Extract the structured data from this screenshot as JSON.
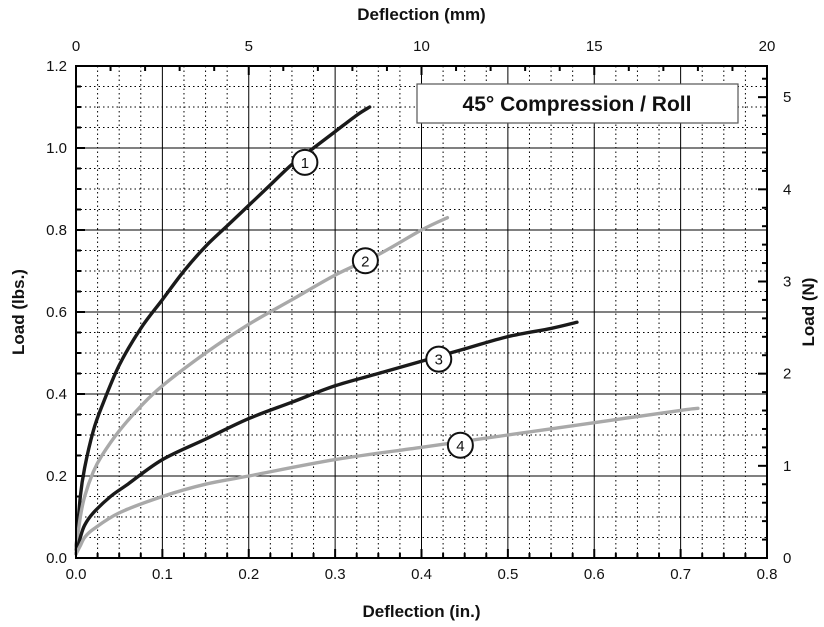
{
  "chart_data": {
    "type": "line",
    "title": "45° Compression / Roll",
    "xlabel": "Deflection (in.)",
    "ylabel": "Load (lbs.)",
    "x2label": "Deflection (mm)",
    "y2label": "Load (N)",
    "xlim": [
      0,
      0.8
    ],
    "ylim": [
      0,
      1.2
    ],
    "x2lim": [
      0,
      20
    ],
    "y2lim": [
      0,
      5.338
    ],
    "x_ticks": [
      "0.0",
      "0.1",
      "0.2",
      "0.3",
      "0.4",
      "0.5",
      "0.6",
      "0.7",
      "0.8"
    ],
    "y_ticks": [
      "0.0",
      "0.2",
      "0.4",
      "0.6",
      "0.8",
      "1.0",
      "1.2"
    ],
    "x2_ticks": [
      "0",
      "5",
      "10",
      "15",
      "20"
    ],
    "y2_ticks": [
      "0",
      "1",
      "2",
      "3",
      "4",
      "5"
    ],
    "grid": true,
    "legend_position": "top-right",
    "colors": {
      "dark": "#1a1a1a",
      "light": "#a9a9a9",
      "grid": "#000000"
    },
    "series": [
      {
        "name": "1",
        "color": "dark",
        "x": [
          0,
          0.005,
          0.01,
          0.02,
          0.03,
          0.05,
          0.075,
          0.1,
          0.125,
          0.15,
          0.175,
          0.2,
          0.225,
          0.25,
          0.275,
          0.3,
          0.325,
          0.34
        ],
        "y": [
          0.02,
          0.15,
          0.22,
          0.31,
          0.37,
          0.47,
          0.56,
          0.63,
          0.7,
          0.76,
          0.81,
          0.86,
          0.91,
          0.96,
          1.0,
          1.04,
          1.08,
          1.1
        ],
        "label_at": [
          0.265,
          0.965
        ]
      },
      {
        "name": "2",
        "color": "light",
        "x": [
          0,
          0.005,
          0.01,
          0.02,
          0.03,
          0.05,
          0.075,
          0.1,
          0.15,
          0.2,
          0.25,
          0.3,
          0.35,
          0.4,
          0.43
        ],
        "y": [
          0.02,
          0.1,
          0.15,
          0.21,
          0.25,
          0.31,
          0.37,
          0.42,
          0.5,
          0.57,
          0.63,
          0.69,
          0.74,
          0.8,
          0.83
        ],
        "label_at": [
          0.335,
          0.725
        ]
      },
      {
        "name": "3",
        "color": "dark",
        "x": [
          0,
          0.005,
          0.01,
          0.02,
          0.04,
          0.06,
          0.1,
          0.15,
          0.2,
          0.25,
          0.3,
          0.35,
          0.4,
          0.45,
          0.5,
          0.55,
          0.58
        ],
        "y": [
          0.01,
          0.05,
          0.08,
          0.11,
          0.15,
          0.18,
          0.24,
          0.29,
          0.34,
          0.38,
          0.42,
          0.45,
          0.48,
          0.51,
          0.54,
          0.56,
          0.575
        ],
        "label_at": [
          0.42,
          0.485
        ]
      },
      {
        "name": "4",
        "color": "light",
        "x": [
          0,
          0.005,
          0.01,
          0.02,
          0.05,
          0.1,
          0.15,
          0.2,
          0.3,
          0.4,
          0.5,
          0.6,
          0.7,
          0.72
        ],
        "y": [
          0.01,
          0.03,
          0.05,
          0.07,
          0.11,
          0.15,
          0.18,
          0.2,
          0.24,
          0.27,
          0.3,
          0.33,
          0.36,
          0.365
        ],
        "label_at": [
          0.445,
          0.275
        ]
      }
    ]
  }
}
